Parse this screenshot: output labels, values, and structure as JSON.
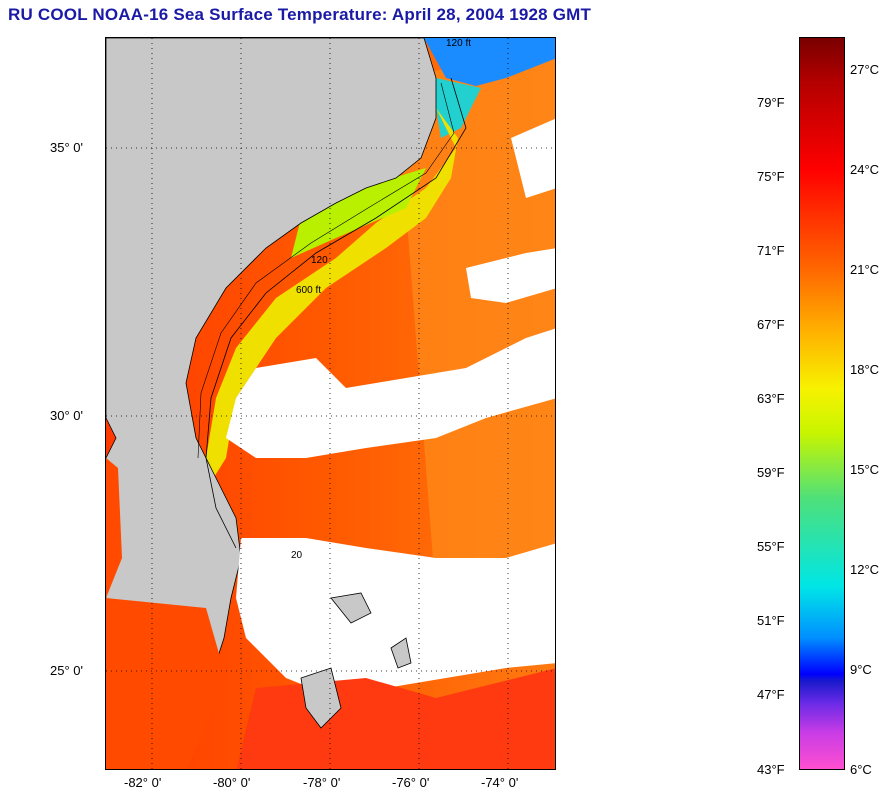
{
  "title": "RU COOL  NOAA-16  Sea Surface Temperature:  April 28, 2004 1928 GMT",
  "lat_labels": [
    "35° 0'",
    "30° 0'",
    "25° 0'"
  ],
  "lon_labels": [
    "-82° 0'",
    "-80° 0'",
    "-78° 0'",
    "-76° 0'",
    "-74° 0'"
  ],
  "isobath_labels": [
    "120 ft",
    "600 ft",
    "120",
    "20"
  ],
  "colorbar": {
    "fahrenheit": [
      "79°F",
      "75°F",
      "71°F",
      "67°F",
      "63°F",
      "59°F",
      "55°F",
      "51°F",
      "47°F",
      "43°F"
    ],
    "celsius": [
      "27°C",
      "24°C",
      "21°C",
      "18°C",
      "15°C",
      "12°C",
      "9°C",
      "6°C"
    ]
  },
  "colors": {
    "land": "#c8c8c8",
    "title": "#1a1aa6",
    "warm": "#ff4a00",
    "cloud": "#ffffff"
  }
}
